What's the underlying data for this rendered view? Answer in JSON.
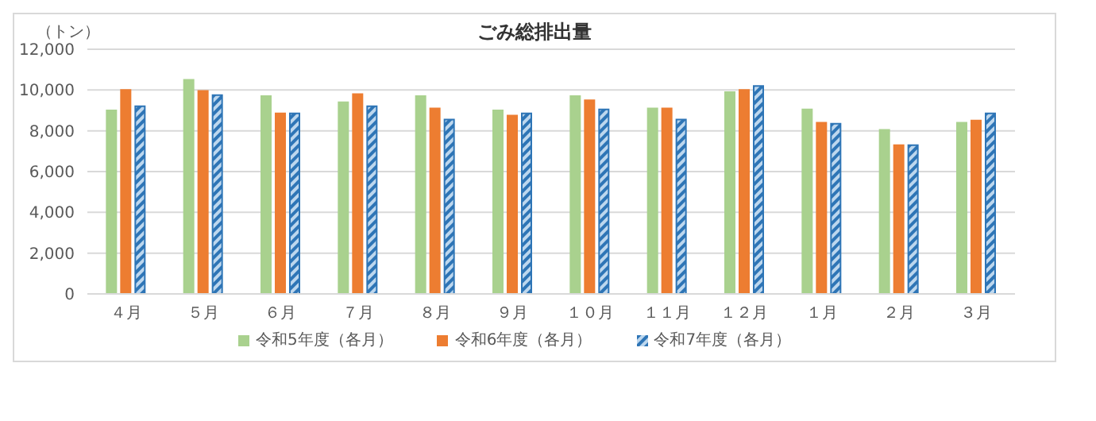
{
  "chart_data": {
    "type": "bar",
    "title": "ごみ総排出量",
    "ylabel": "（トン）",
    "categories": [
      "４月",
      "５月",
      "６月",
      "７月",
      "８月",
      "９月",
      "１０月",
      "１１月",
      "１２月",
      "１月",
      "２月",
      "３月"
    ],
    "series": [
      {
        "name": "令和5年度（各月）",
        "color": "#a9d18e",
        "values": [
          9000,
          10500,
          9700,
          9400,
          9700,
          9000,
          9700,
          9100,
          9900,
          9050,
          8050,
          8400
        ]
      },
      {
        "name": "令和6年度（各月）",
        "color": "#ed7d31",
        "values": [
          10000,
          9950,
          8850,
          9800,
          9100,
          8750,
          9500,
          9100,
          10000,
          8400,
          7300,
          8500
        ]
      },
      {
        "name": "令和7年度（各月）",
        "color": "#2e75b6",
        "values": [
          9200,
          9750,
          8850,
          9200,
          8550,
          8850,
          9050,
          8550,
          10200,
          8350,
          7300,
          8850
        ]
      }
    ],
    "ylim": [
      0,
      12000
    ],
    "yticks": [
      0,
      {
        "value": 2000,
        "label": "2,000"
      },
      {
        "value": 4000,
        "label": "4,000"
      },
      {
        "value": 6000,
        "label": "6,000"
      },
      {
        "value": 8000,
        "label": "8,000"
      },
      {
        "value": 10000,
        "label": "10,000"
      },
      {
        "value": 12000,
        "label": "12,000"
      }
    ],
    "grid": "y",
    "legend": "bottom"
  }
}
